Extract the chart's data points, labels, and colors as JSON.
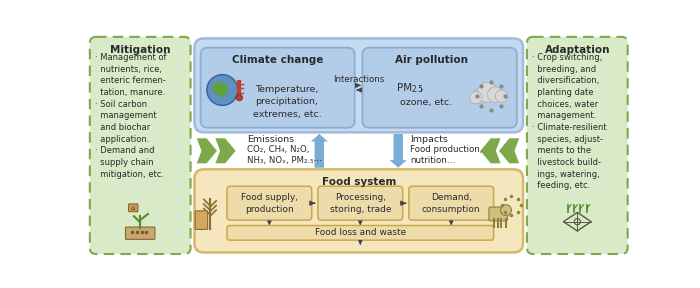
{
  "fig_width": 7.0,
  "fig_height": 2.88,
  "dpi": 100,
  "bg_color": "#ffffff",
  "mitigation_title": "Mitigation",
  "mitigation_lines": "· Management of\n  nutrients, rice,\n  enteric fermen-\n  tation, manure.\n· Soil carbon\n  management\n  and biochar\n  application.\n· Demand and\n  supply chain\n  mitigation, etc.",
  "adaptation_title": "Adaptation",
  "adaptation_lines": "· Crop switching,\n  breeding, and\n  diversification,\n  planting date\n  choices, water\n  management.\n· Climate-resilient\n  species, adjust-\n  ments to the\n  livestock build-\n  ings, watering,\n  feeding, etc.",
  "climate_title": "Climate change",
  "climate_sub": "Temperature,\nprecipitation,\nextremes, etc.",
  "air_title": "Air pollution",
  "air_sub_line1": "PM",
  "air_sub_25": "2.5,",
  "air_sub_line2": "ozone, etc.",
  "interactions_label": "Interactions",
  "emissions_title": "Emissions",
  "emissions_sub": "CO₂, CH₄, N₂O,\nNH₃, NOₓ, PM₂.₅⋯",
  "impacts_title": "Impacts",
  "impacts_sub": "Food production,\nnutrition…",
  "food_system_title": "Food system",
  "food_box1": "Food supply,\nproduction",
  "food_box2": "Processing,\nstoring, trade",
  "food_box3": "Demand,\nconsumption",
  "food_loss": "Food loss and waste",
  "color_blue_outer_fill": "#c5d9f0",
  "color_blue_outer_edge": "#a0bcda",
  "color_blue_inner_fill": "#b3cce8",
  "color_blue_inner_edge": "#8aafd4",
  "color_yellow_fill": "#f5e6be",
  "color_yellow_edge": "#d4b96a",
  "color_inner_fill": "#eddcaa",
  "color_inner_edge": "#c8a84a",
  "color_green": "#7ea84a",
  "color_green_light": "#9ab86a",
  "color_side_fill": "#d8eac8",
  "color_side_edge": "#7ea84a",
  "color_blue_arrow": "#7badd4",
  "color_text": "#2a2a2a",
  "color_arrow": "#444444"
}
